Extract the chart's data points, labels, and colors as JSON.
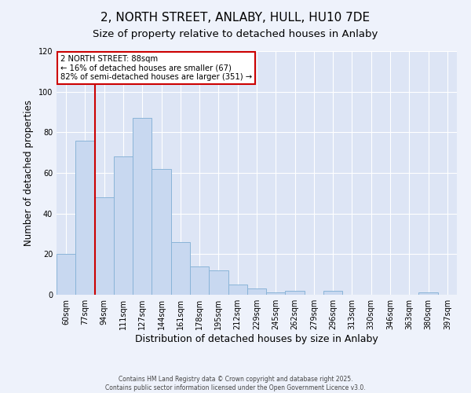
{
  "title": "2, NORTH STREET, ANLABY, HULL, HU10 7DE",
  "subtitle": "Size of property relative to detached houses in Anlaby",
  "xlabel": "Distribution of detached houses by size in Anlaby",
  "ylabel": "Number of detached properties",
  "bin_labels": [
    "60sqm",
    "77sqm",
    "94sqm",
    "111sqm",
    "127sqm",
    "144sqm",
    "161sqm",
    "178sqm",
    "195sqm",
    "212sqm",
    "229sqm",
    "245sqm",
    "262sqm",
    "279sqm",
    "296sqm",
    "313sqm",
    "330sqm",
    "346sqm",
    "363sqm",
    "380sqm",
    "397sqm"
  ],
  "bar_values": [
    20,
    76,
    48,
    68,
    87,
    62,
    26,
    14,
    12,
    5,
    3,
    1,
    2,
    0,
    2,
    0,
    0,
    0,
    0,
    1,
    0
  ],
  "bar_color": "#c8d8f0",
  "bar_edge_color": "#8ab4d8",
  "ylim": [
    0,
    120
  ],
  "yticks": [
    0,
    20,
    40,
    60,
    80,
    100,
    120
  ],
  "vline_x_idx": 1,
  "vline_color": "#cc0000",
  "annotation_title": "2 NORTH STREET: 88sqm",
  "annotation_line1": "← 16% of detached houses are smaller (67)",
  "annotation_line2": "82% of semi-detached houses are larger (351) →",
  "annotation_box_color": "#cc0000",
  "background_color": "#eef2fb",
  "footer1": "Contains HM Land Registry data © Crown copyright and database right 2025.",
  "footer2": "Contains public sector information licensed under the Open Government Licence v3.0.",
  "title_fontsize": 11,
  "subtitle_fontsize": 9.5,
  "xlabel_fontsize": 9,
  "ylabel_fontsize": 8.5,
  "tick_fontsize": 7,
  "grid_color": "#ffffff",
  "axes_bg": "#dde5f5"
}
